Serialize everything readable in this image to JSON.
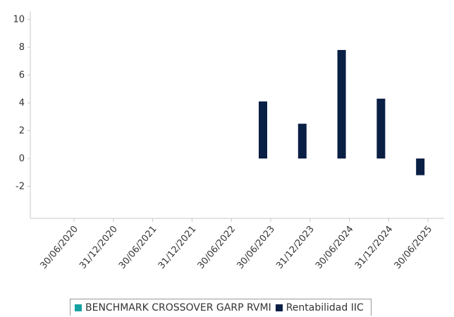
{
  "chart_data": {
    "type": "bar",
    "categories": [
      "30/06/2020",
      "31/12/2020",
      "30/06/2021",
      "31/12/2021",
      "30/06/2022",
      "30/06/2023",
      "31/12/2023",
      "30/06/2024",
      "31/12/2024",
      "30/06/2025"
    ],
    "series": [
      {
        "name": "BENCHMARK CROSSOVER GARP RVMI",
        "color": "#17a2a2",
        "values": [
          null,
          null,
          null,
          null,
          null,
          null,
          null,
          null,
          null,
          null
        ]
      },
      {
        "name": "Rentabilidad IIC",
        "color": "#0a1f44",
        "values": [
          null,
          null,
          null,
          null,
          null,
          4.1,
          2.5,
          7.8,
          4.3,
          -1.2
        ]
      }
    ],
    "yticks": [
      10,
      8,
      6,
      4,
      2,
      0,
      -2
    ],
    "ylim": [
      -4,
      10
    ],
    "title": "",
    "xlabel": "",
    "ylabel": "",
    "grid": false,
    "legend_position": "bottom"
  }
}
